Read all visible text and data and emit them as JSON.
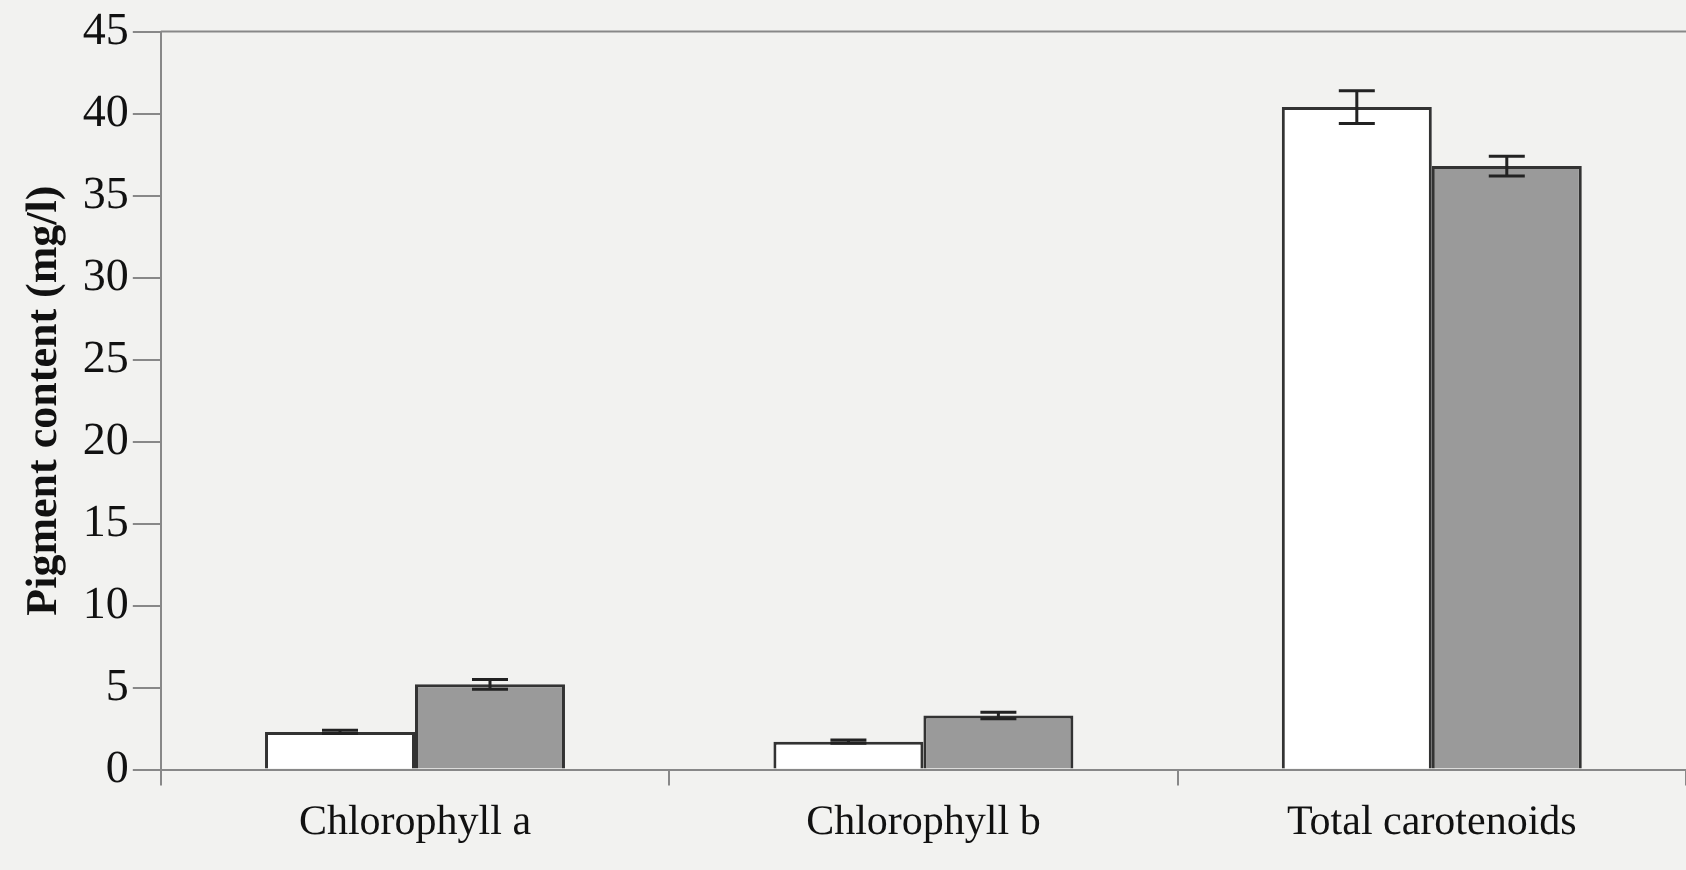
{
  "chart_data": {
    "type": "bar",
    "ylabel": "Pigment content (mg/l)",
    "categories": [
      "Chlorophyll a",
      "Chlorophyll b",
      "Total carotenoids"
    ],
    "series": [
      {
        "color": "#ffffff",
        "values": [
          2.3,
          1.7,
          40.4
        ],
        "errors": [
          0.1,
          0.1,
          1.0
        ]
      },
      {
        "color": "#9a9a9a",
        "values": [
          5.2,
          3.3,
          36.8
        ],
        "errors": [
          0.3,
          0.2,
          0.6
        ]
      }
    ],
    "ylim": [
      0,
      45
    ],
    "yticks": [
      0,
      5,
      10,
      15,
      20,
      25,
      30,
      35,
      40,
      45
    ],
    "grid": false,
    "legend": false
  }
}
